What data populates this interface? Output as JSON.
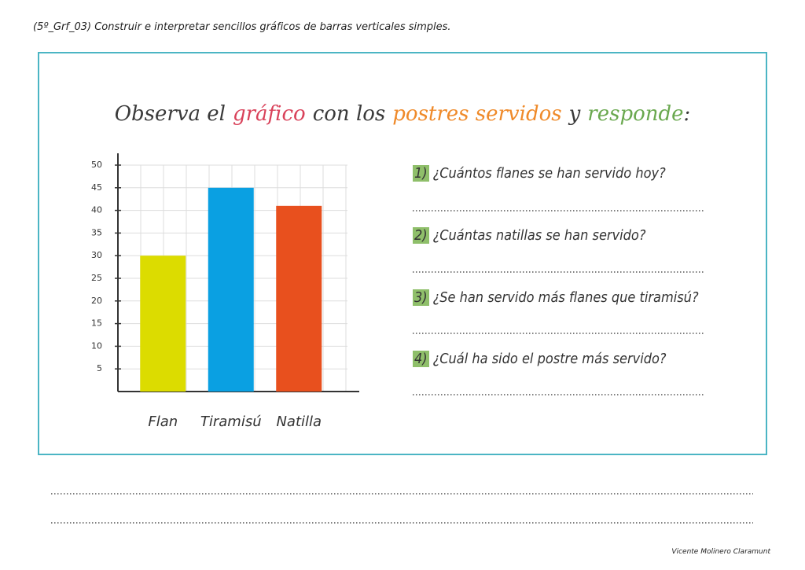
{
  "header": "(5º_Grf_03) Construir e interpretar sencillos gráficos de barras verticales simples.",
  "title": [
    {
      "text": "Observa el",
      "color": "#3a3a3a"
    },
    {
      "text": "gráfico",
      "color": "#d9425a"
    },
    {
      "text": "con los",
      "color": "#3a3a3a"
    },
    {
      "text": "postres servidos",
      "color": "#ef8a2a"
    },
    {
      "text": "y",
      "color": "#3a3a3a"
    },
    {
      "text": "responde",
      "color": "#6aa84f"
    },
    {
      "text": ":",
      "color": "#3a3a3a"
    }
  ],
  "chart_data": {
    "type": "bar",
    "categories": [
      "Flan",
      "Tiramisú",
      "Natilla"
    ],
    "values": [
      30,
      45,
      41
    ],
    "colors": [
      "#dcdc00",
      "#0aa0e2",
      "#e8501e"
    ],
    "ylim": [
      0,
      50
    ],
    "yticks": [
      5,
      10,
      15,
      20,
      25,
      30,
      35,
      40,
      45,
      50
    ],
    "grid": true
  },
  "questions": [
    {
      "number": "1)",
      "text": "¿Cuántos flanes se han servido hoy?"
    },
    {
      "number": "2)",
      "text": "¿Cuántas natillas se han servido?"
    },
    {
      "number": "3)",
      "text": "¿Se han servido más flanes que tiramisú?"
    },
    {
      "number": "4)",
      "text": "¿Cuál ha sido el postre más servido?"
    }
  ],
  "footer": "Vicente Molinero Claramunt"
}
